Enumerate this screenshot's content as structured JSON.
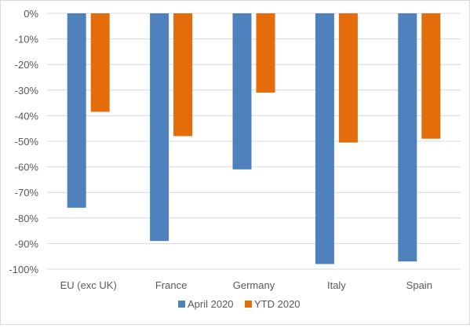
{
  "chart_data": {
    "type": "bar",
    "categories": [
      "EU (exc UK)",
      "France",
      "Germany",
      "Italy",
      "Spain"
    ],
    "series": [
      {
        "name": "April 2020",
        "color": "#4f81bd",
        "values": [
          -76,
          -89,
          -61,
          -98,
          -97
        ]
      },
      {
        "name": "YTD 2020",
        "color": "#e46c0a",
        "values": [
          -38.5,
          -48,
          -31,
          -50.5,
          -49
        ]
      }
    ],
    "title": "",
    "xlabel": "",
    "ylabel": "",
    "ylim": [
      -100,
      0
    ],
    "yticks": [
      0,
      -10,
      -20,
      -30,
      -40,
      -50,
      -60,
      -70,
      -80,
      -90,
      -100
    ],
    "ytick_labels": [
      "0%",
      "-10%",
      "-20%",
      "-30%",
      "-40%",
      "-50%",
      "-60%",
      "-70%",
      "-80%",
      "-90%",
      "-100%"
    ],
    "grid": true,
    "grid_color": "#d9d9d9",
    "legend_position": "bottom"
  }
}
